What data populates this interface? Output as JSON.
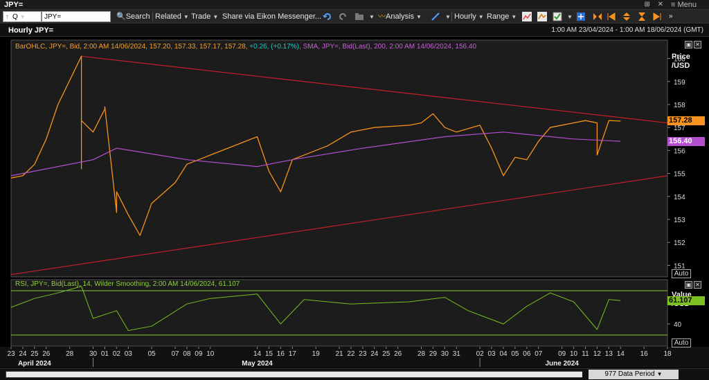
{
  "window": {
    "title": "JPY=",
    "menu_label": "Menu",
    "controls": "⊞ ✕"
  },
  "toolbar": {
    "ric_mode": "Q",
    "ric_value": "JPY=",
    "search_label": "Search",
    "related_label": "Related",
    "trade_label": "Trade",
    "share_label": "Share via Eikon Messenger...",
    "analysis_label": "Analysis",
    "interval_label": "Hourly",
    "range_label": "Range"
  },
  "header": {
    "chart_title": "Hourly JPY=",
    "date_range": "1:00 AM 23/04/2024 - 1:00 AM 18/06/2024 (GMT)"
  },
  "main_panel": {
    "legend_ohlc": "BarOHLC, JPY=, Bid, 2:00 AM 14/06/2024, 157.20, 157.33, 157.17, 157.28,",
    "legend_change": "+0.26, (+0.17%),",
    "legend_sma": "SMA, JPY=, Bid(Last), 200, 2:00 AM 14/06/2024, 156.40",
    "axis_title_line1": "Price",
    "axis_title_line2": "/USD",
    "last_price": "157.28",
    "sma_value": "156.40",
    "auto_label": "Auto",
    "colors": {
      "price": "#f7931e",
      "sma": "#b44fcf",
      "trendline": "#c8202a",
      "last_bg": "#f7931e",
      "sma_bg": "#b44fcf"
    }
  },
  "rsi_panel": {
    "legend": "RSI, JPY=, Bid(Last), 14, Wilder Smoothing, 2:00 AM 14/06/2024, 61.107",
    "axis_title_line1": "Value",
    "axis_title_line2": "/USD",
    "last_value": "61.107",
    "auto_label": "Auto",
    "colors": {
      "rsi": "#78c21e",
      "bands": "#8ec63f",
      "last_bg": "#7cc11f"
    }
  },
  "x_axis": {
    "day_ticks": [
      "23",
      "24",
      "25",
      "26",
      "28",
      "30",
      "01",
      "02",
      "03",
      "05",
      "07",
      "08",
      "09",
      "10",
      "14",
      "15",
      "16",
      "17",
      "19",
      "21",
      "22",
      "23",
      "24",
      "25",
      "26",
      "28",
      "29",
      "30",
      "31",
      "02",
      "03",
      "04",
      "05",
      "06",
      "07",
      "09",
      "10",
      "11",
      "12",
      "13",
      "14",
      "16",
      "18"
    ],
    "month_labels": [
      "April 2024",
      "May 2024",
      "June 2024"
    ]
  },
  "footer": {
    "period_label": "977 Data Period"
  },
  "chart_data": {
    "type": "line",
    "title": "Hourly JPY=",
    "ylabel": "Price /USD",
    "ylim": [
      150.5,
      160.8
    ],
    "yticks": [
      151,
      152,
      153,
      154,
      155,
      156,
      157,
      158,
      159,
      160
    ],
    "x_start": "2024-04-23",
    "x_end": "2024-06-18",
    "series": [
      {
        "name": "JPY= BarOHLC Bid",
        "x": [
          "2024-04-23",
          "2024-04-24",
          "2024-04-25",
          "2024-04-26",
          "2024-04-27",
          "2024-04-29",
          "2024-04-29",
          "2024-04-29",
          "2024-04-30",
          "2024-05-01",
          "2024-05-01",
          "2024-05-02",
          "2024-05-02",
          "2024-05-03",
          "2024-05-04",
          "2024-05-05",
          "2024-05-07",
          "2024-05-08",
          "2024-05-09",
          "2024-05-10",
          "2024-05-13",
          "2024-05-14",
          "2024-05-15",
          "2024-05-16",
          "2024-05-17",
          "2024-05-20",
          "2024-05-22",
          "2024-05-23",
          "2024-05-24",
          "2024-05-27",
          "2024-05-28",
          "2024-05-29",
          "2024-05-30",
          "2024-05-31",
          "2024-06-02",
          "2024-06-03",
          "2024-06-04",
          "2024-06-05",
          "2024-06-06",
          "2024-06-07",
          "2024-06-08",
          "2024-06-10",
          "2024-06-11",
          "2024-06-12",
          "2024-06-12",
          "2024-06-13",
          "2024-06-14"
        ],
        "values": [
          154.8,
          154.9,
          155.4,
          156.5,
          158.0,
          160.1,
          155.2,
          157.3,
          156.8,
          157.8,
          157.9,
          153.3,
          154.2,
          153.2,
          152.3,
          153.7,
          154.6,
          155.4,
          155.6,
          155.8,
          156.4,
          156.6,
          155.1,
          154.2,
          155.6,
          156.2,
          156.8,
          156.9,
          157.0,
          157.1,
          157.2,
          157.6,
          157.0,
          156.8,
          157.1,
          156.1,
          154.9,
          155.7,
          155.6,
          156.4,
          157.0,
          157.2,
          157.3,
          157.2,
          155.8,
          157.3,
          157.28
        ],
        "color": "#f7931e"
      },
      {
        "name": "SMA 200",
        "x": [
          "2024-04-23",
          "2024-04-30",
          "2024-05-02",
          "2024-05-08",
          "2024-05-14",
          "2024-05-17",
          "2024-05-23",
          "2024-05-30",
          "2024-06-04",
          "2024-06-10",
          "2024-06-14"
        ],
        "values": [
          154.9,
          155.6,
          156.1,
          155.6,
          155.3,
          155.6,
          156.1,
          156.6,
          156.8,
          156.5,
          156.4
        ],
        "color": "#b44fcf"
      }
    ],
    "trendlines": [
      {
        "x": [
          "2024-04-29",
          "2024-06-18"
        ],
        "values": [
          160.1,
          157.2
        ],
        "color": "#c8202a"
      },
      {
        "x": [
          "2024-04-23",
          "2024-06-18"
        ],
        "values": [
          150.6,
          154.9
        ],
        "color": "#c8202a"
      }
    ],
    "rsi": {
      "name": "RSI 14",
      "ylim": [
        20,
        80
      ],
      "yticks": [
        40
      ],
      "bands": [
        70,
        30
      ],
      "last": 61.107,
      "x": [
        "2024-04-23",
        "2024-04-25",
        "2024-04-27",
        "2024-04-29",
        "2024-04-30",
        "2024-05-02",
        "2024-05-03",
        "2024-05-05",
        "2024-05-08",
        "2024-05-10",
        "2024-05-14",
        "2024-05-16",
        "2024-05-18",
        "2024-05-22",
        "2024-05-27",
        "2024-05-30",
        "2024-06-01",
        "2024-06-04",
        "2024-06-06",
        "2024-06-08",
        "2024-06-10",
        "2024-06-12",
        "2024-06-13",
        "2024-06-14"
      ],
      "values": [
        55,
        63,
        68,
        74,
        45,
        52,
        34,
        38,
        58,
        63,
        67,
        40,
        62,
        58,
        60,
        64,
        52,
        40,
        56,
        68,
        60,
        35,
        62,
        61.107
      ]
    }
  }
}
